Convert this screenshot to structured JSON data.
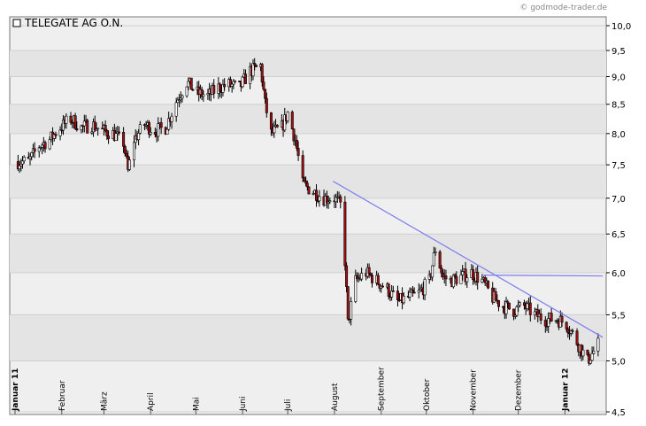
{
  "chart_data": {
    "type": "candlestick",
    "title": "TELEGATE AG O.N.",
    "watermark": "© godmode-trader.de",
    "xlabel": "",
    "ylabel": "",
    "ylim": [
      4.5,
      10.0
    ],
    "y_scale": "log",
    "grid": true,
    "y_ticks": [
      "10,0",
      "9,5",
      "9,0",
      "8,5",
      "8,0",
      "7,5",
      "7,0",
      "6,5",
      "6,0",
      "5,5",
      "5,0",
      "4,5"
    ],
    "y_tick_values": [
      10.0,
      9.5,
      9.0,
      8.5,
      8.0,
      7.5,
      7.0,
      6.5,
      6.0,
      5.5,
      5.0,
      4.5
    ],
    "x_range": [
      "2011-01-01",
      "2012-01-26"
    ],
    "months": [
      {
        "label": "Januar 11",
        "date": "2011-01-01",
        "bold": true
      },
      {
        "label": "Februar",
        "date": "2011-02-01",
        "bold": false
      },
      {
        "label": "März",
        "date": "2011-03-01",
        "bold": false
      },
      {
        "label": "April",
        "date": "2011-04-01",
        "bold": false
      },
      {
        "label": "Mai",
        "date": "2011-05-01",
        "bold": false
      },
      {
        "label": "Juni",
        "date": "2011-06-01",
        "bold": false
      },
      {
        "label": "Juli",
        "date": "2011-07-01",
        "bold": false
      },
      {
        "label": "August",
        "date": "2011-08-01",
        "bold": false
      },
      {
        "label": "September",
        "date": "2011-09-01",
        "bold": false
      },
      {
        "label": "Oktober",
        "date": "2011-10-01",
        "bold": false
      },
      {
        "label": "November",
        "date": "2011-11-01",
        "bold": false
      },
      {
        "label": "Dezember",
        "date": "2011-12-01",
        "bold": false
      },
      {
        "label": "Januar 12",
        "date": "2012-01-01",
        "bold": true
      }
    ],
    "series": [
      {
        "price_path": [
          [
            "2011-01-03",
            7.55
          ],
          [
            "2011-01-10",
            7.55
          ],
          [
            "2011-01-17",
            7.8
          ],
          [
            "2011-01-24",
            7.9
          ],
          [
            "2011-01-31",
            8.1
          ],
          [
            "2011-02-07",
            8.25
          ],
          [
            "2011-02-14",
            8.1
          ],
          [
            "2011-02-21",
            8.15
          ],
          [
            "2011-02-28",
            8.05
          ],
          [
            "2011-03-07",
            8.0
          ],
          [
            "2011-03-14",
            7.85
          ],
          [
            "2011-03-17",
            7.4
          ],
          [
            "2011-03-21",
            7.9
          ],
          [
            "2011-03-28",
            8.15
          ],
          [
            "2011-04-04",
            8.05
          ],
          [
            "2011-04-11",
            8.1
          ],
          [
            "2011-04-18",
            8.55
          ],
          [
            "2011-04-25",
            8.9
          ],
          [
            "2011-05-02",
            8.7
          ],
          [
            "2011-05-09",
            8.65
          ],
          [
            "2011-05-16",
            8.8
          ],
          [
            "2011-05-23",
            8.85
          ],
          [
            "2011-05-30",
            8.8
          ],
          [
            "2011-06-06",
            9.1
          ],
          [
            "2011-06-13",
            9.2
          ],
          [
            "2011-06-16",
            8.5
          ],
          [
            "2011-06-20",
            8.0
          ],
          [
            "2011-06-27",
            8.1
          ],
          [
            "2011-07-01",
            8.35
          ],
          [
            "2011-07-06",
            7.9
          ],
          [
            "2011-07-11",
            7.2
          ],
          [
            "2011-07-18",
            7.1
          ],
          [
            "2011-07-25",
            7.0
          ],
          [
            "2011-08-01",
            7.0
          ],
          [
            "2011-08-05",
            6.9
          ],
          [
            "2011-08-08",
            6.15
          ],
          [
            "2011-08-10",
            5.4
          ],
          [
            "2011-08-15",
            5.9
          ],
          [
            "2011-08-22",
            6.0
          ],
          [
            "2011-08-29",
            5.9
          ],
          [
            "2011-09-05",
            5.8
          ],
          [
            "2011-09-12",
            5.65
          ],
          [
            "2011-09-19",
            5.7
          ],
          [
            "2011-09-26",
            5.75
          ],
          [
            "2011-10-03",
            5.9
          ],
          [
            "2011-10-07",
            6.3
          ],
          [
            "2011-10-12",
            5.95
          ],
          [
            "2011-10-17",
            5.9
          ],
          [
            "2011-10-24",
            5.95
          ],
          [
            "2011-10-31",
            6.0
          ],
          [
            "2011-11-07",
            5.9
          ],
          [
            "2011-11-14",
            5.7
          ],
          [
            "2011-11-21",
            5.6
          ],
          [
            "2011-11-28",
            5.55
          ],
          [
            "2011-12-05",
            5.6
          ],
          [
            "2011-12-12",
            5.5
          ],
          [
            "2011-12-19",
            5.45
          ],
          [
            "2011-12-27",
            5.45
          ],
          [
            "2012-01-02",
            5.4
          ],
          [
            "2012-01-09",
            5.2
          ],
          [
            "2012-01-16",
            5.0
          ],
          [
            "2012-01-20",
            5.1
          ],
          [
            "2012-01-24",
            5.2
          ]
        ],
        "color": "#000000"
      }
    ],
    "candle_colors": {
      "up": "#ffffff",
      "down": "#a01010",
      "wick": "#000000"
    },
    "trendlines": [
      {
        "from": [
          "2011-07-31",
          7.25
        ],
        "to": [
          "2012-01-26",
          5.25
        ],
        "color": "#7b7bf0"
      },
      {
        "from": [
          "2011-11-07",
          5.97
        ],
        "to": [
          "2012-01-26",
          5.96
        ],
        "color": "#7b7bf0"
      }
    ]
  }
}
